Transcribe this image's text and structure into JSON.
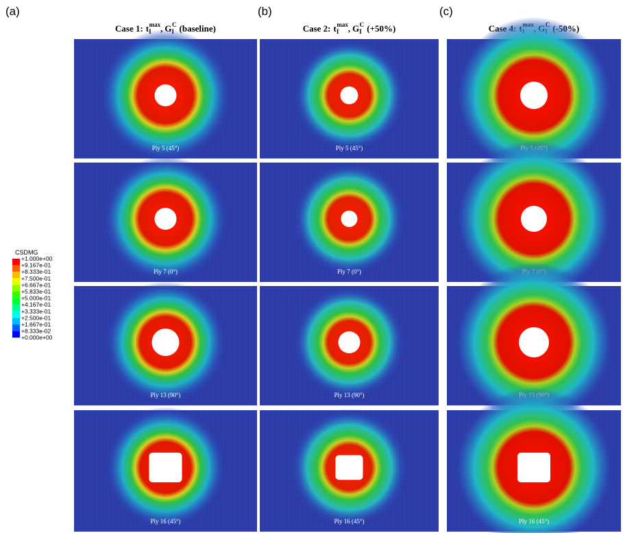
{
  "panel_labels": [
    "(a)",
    "(b)",
    "(c)"
  ],
  "columns": [
    {
      "case": "Case 1:",
      "t": "t",
      "t_sub": "I",
      "t_sup": "max",
      "sep": ",",
      "g": "G",
      "g_sub": "I",
      "g_sup": "C",
      "suffix": "(baseline)",
      "plies": [
        "Ply 5 (45°)",
        "Ply 7 (0°)",
        "Ply 13 (90°)",
        "Ply 16 (45°)"
      ]
    },
    {
      "case": "Case 2:",
      "t": "t",
      "t_sub": "I",
      "t_sup": "max",
      "sep": ",",
      "g": "G",
      "g_sub": "I",
      "g_sup": "C",
      "suffix": "(+50%)",
      "plies": [
        "Ply 5 (45°)",
        "Ply 7 (0°)",
        "Ply 13 (90°)",
        "Ply 16 (45°)"
      ]
    },
    {
      "case": "Case 4:",
      "t": "t",
      "t_sub": "I",
      "t_sup": "max",
      "sep": ",",
      "g": "G",
      "g_sub": "I",
      "g_sup": "C",
      "suffix": "(-50%)",
      "plies": [
        "Ply 5 (45°)",
        "Ply 7 (0°)",
        "Ply 13 (90°)",
        "Ply 16 (45°)"
      ]
    }
  ],
  "legend": {
    "title": "CSDMG",
    "labels": [
      "+1.000e+00",
      "+9.167e-01",
      "+8.333e-01",
      "+7.500e-01",
      "+6.667e-01",
      "+5.833e-01",
      "+5.000e-01",
      "+4.167e-01",
      "+3.333e-01",
      "+2.500e-01",
      "+1.667e-01",
      "+8.333e-02",
      "+0.000e+00"
    ],
    "colors": [
      "#ff0000",
      "#ff5c00",
      "#ffb900",
      "#e8ff00",
      "#8bff00",
      "#2eff00",
      "#00ff2e",
      "#00ff8b",
      "#00ffe8",
      "#00b9ff",
      "#005cff",
      "#0000ff"
    ]
  }
}
